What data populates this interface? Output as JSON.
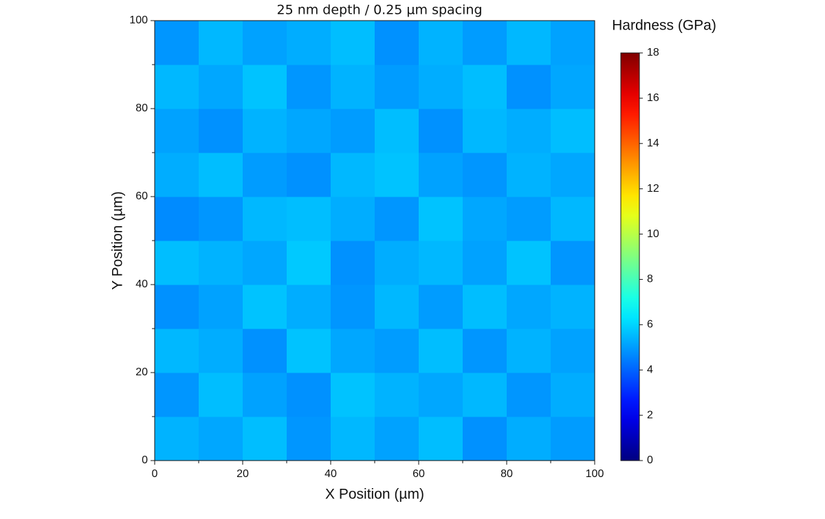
{
  "chart_data": {
    "type": "heatmap",
    "title": "25 nm depth / 0.25 µm spacing",
    "x_label": "X Position (µm)",
    "y_label": "Y Position (µm)",
    "colorbar_label": "Hardness (GPa)",
    "colormap": "jet",
    "xlim": [
      0,
      100
    ],
    "xticks": [
      0,
      20,
      40,
      60,
      80,
      100
    ],
    "ylim": [
      0,
      100
    ],
    "yticks": [
      0,
      20,
      40,
      60,
      80,
      100
    ],
    "zlim": [
      0,
      18
    ],
    "zticks": [
      0,
      2,
      4,
      6,
      8,
      10,
      12,
      14,
      16,
      18
    ],
    "z": [
      [
        5.4,
        5.2,
        5.6,
        4.9,
        5.5,
        5.1,
        5.6,
        4.8,
        5.3,
        5.0
      ],
      [
        4.9,
        5.6,
        5.1,
        4.8,
        5.7,
        5.4,
        5.2,
        5.5,
        4.9,
        5.3
      ],
      [
        5.5,
        5.3,
        4.8,
        5.7,
        5.2,
        5.0,
        5.6,
        4.9,
        5.4,
        5.1
      ],
      [
        4.8,
        5.1,
        5.7,
        5.3,
        4.9,
        5.5,
        5.0,
        5.6,
        5.2,
        5.4
      ],
      [
        5.6,
        5.4,
        5.2,
        5.8,
        4.8,
        5.3,
        5.5,
        5.1,
        5.7,
        4.9
      ],
      [
        4.7,
        4.9,
        5.5,
        5.6,
        5.3,
        4.9,
        5.7,
        5.2,
        5.0,
        5.5
      ],
      [
        5.3,
        5.6,
        5.0,
        4.8,
        5.5,
        5.7,
        5.1,
        4.9,
        5.4,
        5.2
      ],
      [
        5.1,
        4.8,
        5.4,
        5.2,
        5.0,
        5.6,
        4.8,
        5.5,
        5.3,
        5.6
      ],
      [
        5.5,
        5.2,
        5.7,
        4.9,
        5.4,
        5.0,
        5.3,
        5.6,
        4.8,
        5.2
      ],
      [
        4.9,
        5.5,
        5.1,
        5.3,
        5.6,
        4.8,
        5.4,
        5.0,
        5.5,
        5.1
      ]
    ]
  }
}
